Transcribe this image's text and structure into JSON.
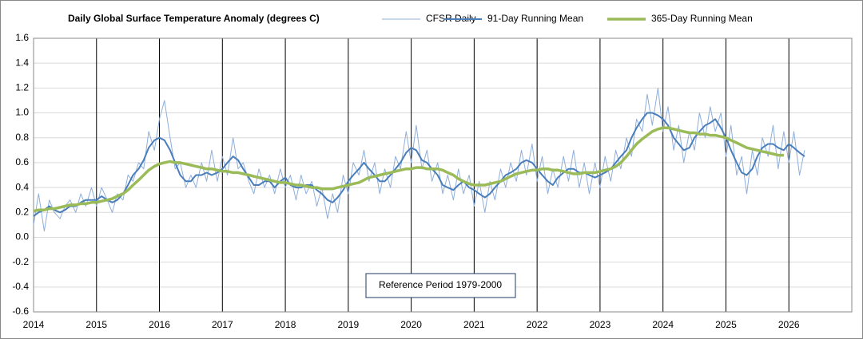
{
  "chart_data": {
    "type": "line",
    "title": "Daily Global Surface Temperature Anomaly (degrees C)",
    "annotation": "Reference Period 1979-2000",
    "xlim": [
      2014,
      2027
    ],
    "xticks": [
      2014,
      2015,
      2016,
      2017,
      2018,
      2019,
      2020,
      2021,
      2022,
      2023,
      2024,
      2025,
      2026
    ],
    "ylim": [
      -0.6,
      1.6
    ],
    "yticks": [
      -0.6,
      -0.4,
      -0.2,
      {
        "value": 0,
        "label": "0.0"
      },
      0.2,
      0.4,
      0.6,
      0.8,
      {
        "value": 1,
        "label": "1.0"
      },
      1.2,
      1.4,
      1.6
    ],
    "grid": true,
    "legend": "top",
    "x": [
      2014,
      2014.08,
      2014.17,
      2014.25,
      2014.33,
      2014.42,
      2014.5,
      2014.58,
      2014.67,
      2014.75,
      2014.83,
      2014.92,
      2015,
      2015.08,
      2015.17,
      2015.25,
      2015.33,
      2015.42,
      2015.5,
      2015.58,
      2015.67,
      2015.75,
      2015.83,
      2015.92,
      2016,
      2016.08,
      2016.17,
      2016.25,
      2016.33,
      2016.42,
      2016.5,
      2016.58,
      2016.67,
      2016.75,
      2016.83,
      2016.92,
      2017,
      2017.08,
      2017.17,
      2017.25,
      2017.33,
      2017.42,
      2017.5,
      2017.58,
      2017.67,
      2017.75,
      2017.83,
      2017.92,
      2018,
      2018.08,
      2018.17,
      2018.25,
      2018.33,
      2018.42,
      2018.5,
      2018.58,
      2018.67,
      2018.75,
      2018.83,
      2018.92,
      2019,
      2019.08,
      2019.17,
      2019.25,
      2019.33,
      2019.42,
      2019.5,
      2019.58,
      2019.67,
      2019.75,
      2019.83,
      2019.92,
      2020,
      2020.08,
      2020.17,
      2020.25,
      2020.33,
      2020.42,
      2020.5,
      2020.58,
      2020.67,
      2020.75,
      2020.83,
      2020.92,
      2021,
      2021.08,
      2021.17,
      2021.25,
      2021.33,
      2021.42,
      2021.5,
      2021.58,
      2021.67,
      2021.75,
      2021.83,
      2021.92,
      2022,
      2022.08,
      2022.17,
      2022.25,
      2022.33,
      2022.42,
      2022.5,
      2022.58,
      2022.67,
      2022.75,
      2022.83,
      2022.92,
      2023,
      2023.08,
      2023.17,
      2023.25,
      2023.33,
      2023.42,
      2023.5,
      2023.58,
      2023.67,
      2023.75,
      2023.83,
      2023.92,
      2024,
      2024.08,
      2024.17,
      2024.25,
      2024.33,
      2024.42,
      2024.5,
      2024.58,
      2024.67,
      2024.75,
      2024.83,
      2024.92,
      2025,
      2025.08,
      2025.17,
      2025.25,
      2025.33,
      2025.42,
      2025.5,
      2025.58,
      2025.67,
      2025.75,
      2025.83,
      2025.92,
      2026,
      2026.08,
      2026.17,
      2026.25
    ],
    "series": [
      {
        "name": "CFSR Daily",
        "color": "#8eaedb",
        "values": [
          0.1,
          0.35,
          0.05,
          0.3,
          0.2,
          0.15,
          0.25,
          0.3,
          0.2,
          0.35,
          0.25,
          0.4,
          0.25,
          0.4,
          0.3,
          0.2,
          0.35,
          0.3,
          0.5,
          0.45,
          0.6,
          0.55,
          0.85,
          0.7,
          0.95,
          1.1,
          0.8,
          0.55,
          0.6,
          0.4,
          0.5,
          0.4,
          0.6,
          0.45,
          0.7,
          0.45,
          0.65,
          0.5,
          0.8,
          0.55,
          0.6,
          0.45,
          0.35,
          0.55,
          0.4,
          0.5,
          0.35,
          0.55,
          0.4,
          0.5,
          0.3,
          0.5,
          0.35,
          0.45,
          0.25,
          0.4,
          0.15,
          0.35,
          0.2,
          0.5,
          0.35,
          0.6,
          0.5,
          0.7,
          0.45,
          0.6,
          0.35,
          0.55,
          0.4,
          0.65,
          0.55,
          0.85,
          0.6,
          0.9,
          0.55,
          0.7,
          0.45,
          0.6,
          0.35,
          0.5,
          0.3,
          0.55,
          0.35,
          0.5,
          0.25,
          0.45,
          0.2,
          0.45,
          0.3,
          0.55,
          0.4,
          0.6,
          0.45,
          0.7,
          0.5,
          0.75,
          0.45,
          0.65,
          0.35,
          0.55,
          0.4,
          0.65,
          0.45,
          0.7,
          0.4,
          0.6,
          0.35,
          0.6,
          0.4,
          0.65,
          0.45,
          0.7,
          0.55,
          0.8,
          0.65,
          0.95,
          0.85,
          1.15,
          0.9,
          1.2,
          0.85,
          1.05,
          0.7,
          0.9,
          0.6,
          0.85,
          0.7,
          1.0,
          0.8,
          1.05,
          0.85,
          1.0,
          0.65,
          0.9,
          0.5,
          0.65,
          0.35,
          0.7,
          0.5,
          0.8,
          0.65,
          0.9,
          0.55,
          0.85,
          0.6,
          0.85,
          0.5,
          0.7
        ]
      },
      {
        "name": "91-Day Running Mean",
        "color": "#4a7ebb",
        "values": [
          0.17,
          0.2,
          0.22,
          0.25,
          0.22,
          0.2,
          0.22,
          0.25,
          0.25,
          0.28,
          0.3,
          0.3,
          0.3,
          0.33,
          0.3,
          0.28,
          0.3,
          0.35,
          0.42,
          0.5,
          0.55,
          0.62,
          0.72,
          0.78,
          0.8,
          0.78,
          0.7,
          0.6,
          0.5,
          0.45,
          0.45,
          0.5,
          0.5,
          0.52,
          0.5,
          0.52,
          0.55,
          0.6,
          0.65,
          0.62,
          0.55,
          0.48,
          0.42,
          0.42,
          0.45,
          0.45,
          0.4,
          0.45,
          0.48,
          0.42,
          0.4,
          0.4,
          0.42,
          0.42,
          0.38,
          0.35,
          0.3,
          0.28,
          0.32,
          0.38,
          0.45,
          0.5,
          0.55,
          0.6,
          0.55,
          0.5,
          0.45,
          0.45,
          0.5,
          0.55,
          0.6,
          0.68,
          0.72,
          0.7,
          0.62,
          0.6,
          0.55,
          0.5,
          0.42,
          0.4,
          0.38,
          0.42,
          0.45,
          0.4,
          0.38,
          0.35,
          0.32,
          0.35,
          0.4,
          0.45,
          0.5,
          0.52,
          0.55,
          0.6,
          0.62,
          0.6,
          0.55,
          0.5,
          0.45,
          0.42,
          0.48,
          0.52,
          0.55,
          0.55,
          0.52,
          0.52,
          0.5,
          0.48,
          0.5,
          0.52,
          0.55,
          0.6,
          0.65,
          0.7,
          0.8,
          0.88,
          0.95,
          1.0,
          1.0,
          0.98,
          0.95,
          0.9,
          0.8,
          0.75,
          0.7,
          0.72,
          0.8,
          0.85,
          0.9,
          0.92,
          0.95,
          0.88,
          0.8,
          0.7,
          0.6,
          0.52,
          0.5,
          0.55,
          0.65,
          0.72,
          0.75,
          0.75,
          0.72,
          0.7,
          0.75,
          0.72,
          0.68,
          0.65
        ]
      },
      {
        "name": "365-Day Running Mean",
        "color": "#9bbb59",
        "values": [
          0.21,
          0.22,
          0.22,
          0.23,
          0.23,
          0.24,
          0.25,
          0.26,
          0.26,
          0.27,
          0.27,
          0.28,
          0.28,
          0.29,
          0.3,
          0.31,
          0.33,
          0.35,
          0.38,
          0.42,
          0.46,
          0.5,
          0.54,
          0.57,
          0.59,
          0.6,
          0.61,
          0.6,
          0.6,
          0.59,
          0.58,
          0.57,
          0.56,
          0.55,
          0.55,
          0.54,
          0.53,
          0.53,
          0.52,
          0.52,
          0.51,
          0.5,
          0.49,
          0.48,
          0.47,
          0.46,
          0.45,
          0.44,
          0.44,
          0.43,
          0.42,
          0.42,
          0.41,
          0.4,
          0.4,
          0.39,
          0.39,
          0.39,
          0.4,
          0.41,
          0.42,
          0.43,
          0.44,
          0.46,
          0.48,
          0.49,
          0.5,
          0.51,
          0.52,
          0.53,
          0.54,
          0.55,
          0.55,
          0.56,
          0.56,
          0.55,
          0.55,
          0.55,
          0.54,
          0.52,
          0.5,
          0.47,
          0.45,
          0.43,
          0.42,
          0.42,
          0.42,
          0.43,
          0.44,
          0.45,
          0.47,
          0.49,
          0.51,
          0.52,
          0.53,
          0.54,
          0.54,
          0.55,
          0.55,
          0.54,
          0.54,
          0.53,
          0.52,
          0.51,
          0.51,
          0.52,
          0.52,
          0.52,
          0.53,
          0.54,
          0.55,
          0.57,
          0.6,
          0.65,
          0.7,
          0.75,
          0.79,
          0.82,
          0.85,
          0.87,
          0.88,
          0.88,
          0.87,
          0.86,
          0.85,
          0.84,
          0.84,
          0.83,
          0.83,
          0.82,
          0.82,
          0.81,
          0.8,
          0.78,
          0.76,
          0.74,
          0.72,
          0.71,
          0.7,
          0.69,
          0.68,
          0.67,
          0.66,
          0.66,
          null,
          null,
          null,
          null
        ]
      }
    ]
  }
}
